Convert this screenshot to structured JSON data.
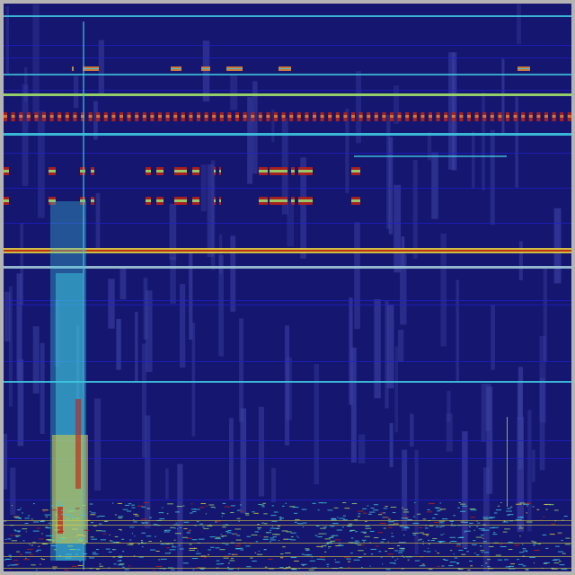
{
  "view": {
    "type": "spectrogram-waterfall",
    "colors": {
      "frame": "#b4b4b4",
      "background": "#15166f",
      "streak": "#3a3fa0",
      "blue_line": "#2020d0",
      "cyan": "#3ec8e0",
      "green": "#9ad86a",
      "yellow": "#e0d040",
      "red": "#c02010",
      "orange": "#e08030"
    }
  }
}
